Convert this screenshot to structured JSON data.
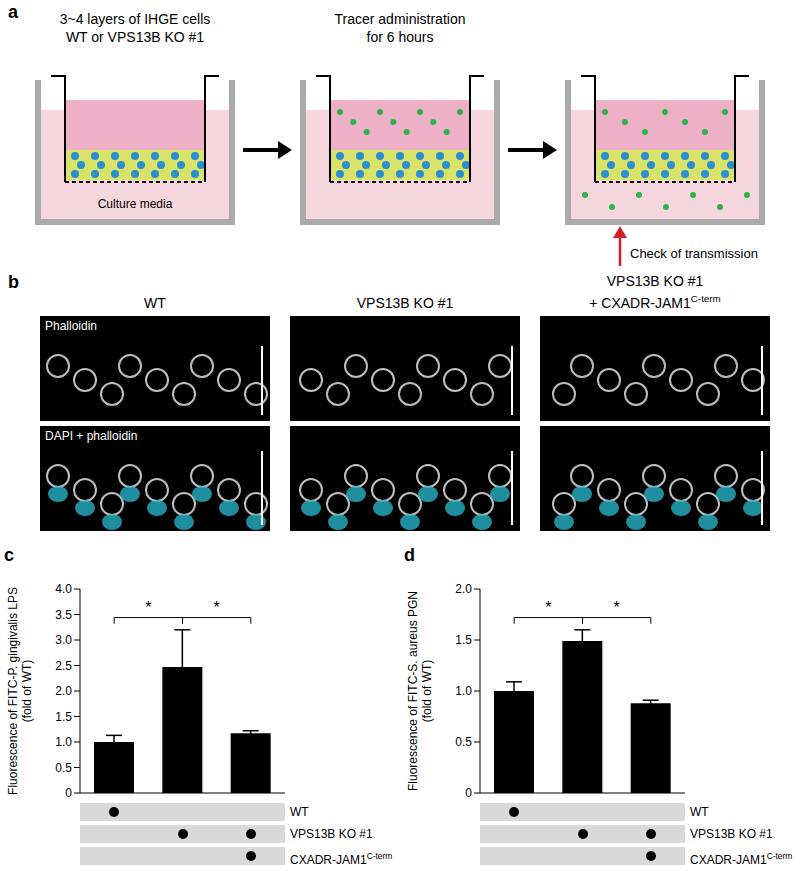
{
  "panel_a": {
    "letter": "a",
    "step_titles": [
      [
        "3~4 layers of IHGE cells",
        "WT or VPS13B KO #1"
      ],
      [
        "Tracer administration",
        "for 6 hours"
      ]
    ],
    "media_label": "Culture media",
    "transmission_label": "Check of transmission"
  },
  "panel_b": {
    "letter": "b",
    "columns": [
      [
        {
          "text": "WT"
        }
      ],
      [
        {
          "text": "VPS13B KO #1"
        }
      ],
      [
        {
          "text": "VPS13B KO #1"
        },
        {
          "text": "+ CXADR-JAM1",
          "superscript": "C-term"
        }
      ]
    ],
    "rows": [
      "Phalloidin",
      "DAPI + phalloidin"
    ]
  },
  "chart_data": [
    {
      "letter": "c",
      "type": "bar",
      "y_label": "Fluorescence of FITC-P. gingivalis LPS (fold of WT)",
      "categories": [
        null,
        null,
        null
      ],
      "values": [
        1.0,
        2.47,
        1.17
      ],
      "errors": [
        0.13,
        0.73,
        0.05
      ],
      "color": "#000000",
      "ylim": [
        0,
        4
      ],
      "yticks": [
        0,
        0.5,
        {
          "value": 1,
          "label": "1.0"
        },
        1.5,
        {
          "value": 2,
          "label": "2.0"
        },
        2.5,
        {
          "value": 3,
          "label": "3.0"
        },
        3.5,
        {
          "value": 4,
          "label": "4.0"
        }
      ],
      "significance": [
        {
          "pair": [
            0,
            1
          ],
          "label": "*"
        },
        {
          "pair": [
            1,
            2
          ],
          "label": "*"
        }
      ],
      "conditions": [
        {
          "label": [
            {
              "text": "WT"
            }
          ],
          "marks": [
            true,
            false,
            false
          ]
        },
        {
          "label": [
            {
              "text": "VPS13B KO #1"
            }
          ],
          "marks": [
            false,
            true,
            true
          ]
        },
        {
          "label": [
            {
              "text": "CXADR-JAM1",
              "superscript": "C-term"
            }
          ],
          "marks": [
            false,
            false,
            true
          ]
        }
      ]
    },
    {
      "letter": "d",
      "type": "bar",
      "y_label": "Fluorescence of FITC-S. aureus PGN (fold of WT)",
      "categories": [
        null,
        null,
        null
      ],
      "values": [
        1.0,
        1.49,
        0.88
      ],
      "errors": [
        0.09,
        0.11,
        0.03
      ],
      "color": "#000000",
      "ylim": [
        0,
        2
      ],
      "yticks": [
        0,
        0.5,
        {
          "value": 1,
          "label": "1.0"
        },
        1.5,
        {
          "value": 2,
          "label": "2.0"
        }
      ],
      "significance": [
        {
          "pair": [
            0,
            1
          ],
          "label": "*"
        },
        {
          "pair": [
            1,
            2
          ],
          "label": "*"
        }
      ],
      "conditions": [
        {
          "label": [
            {
              "text": "WT"
            }
          ],
          "marks": [
            true,
            false,
            false
          ]
        },
        {
          "label": [
            {
              "text": "VPS13B KO #1"
            }
          ],
          "marks": [
            false,
            true,
            true
          ]
        },
        {
          "label": [
            {
              "text": "CXADR-JAM1",
              "superscript": "C-term"
            }
          ],
          "marks": [
            false,
            false,
            true
          ]
        }
      ]
    }
  ]
}
